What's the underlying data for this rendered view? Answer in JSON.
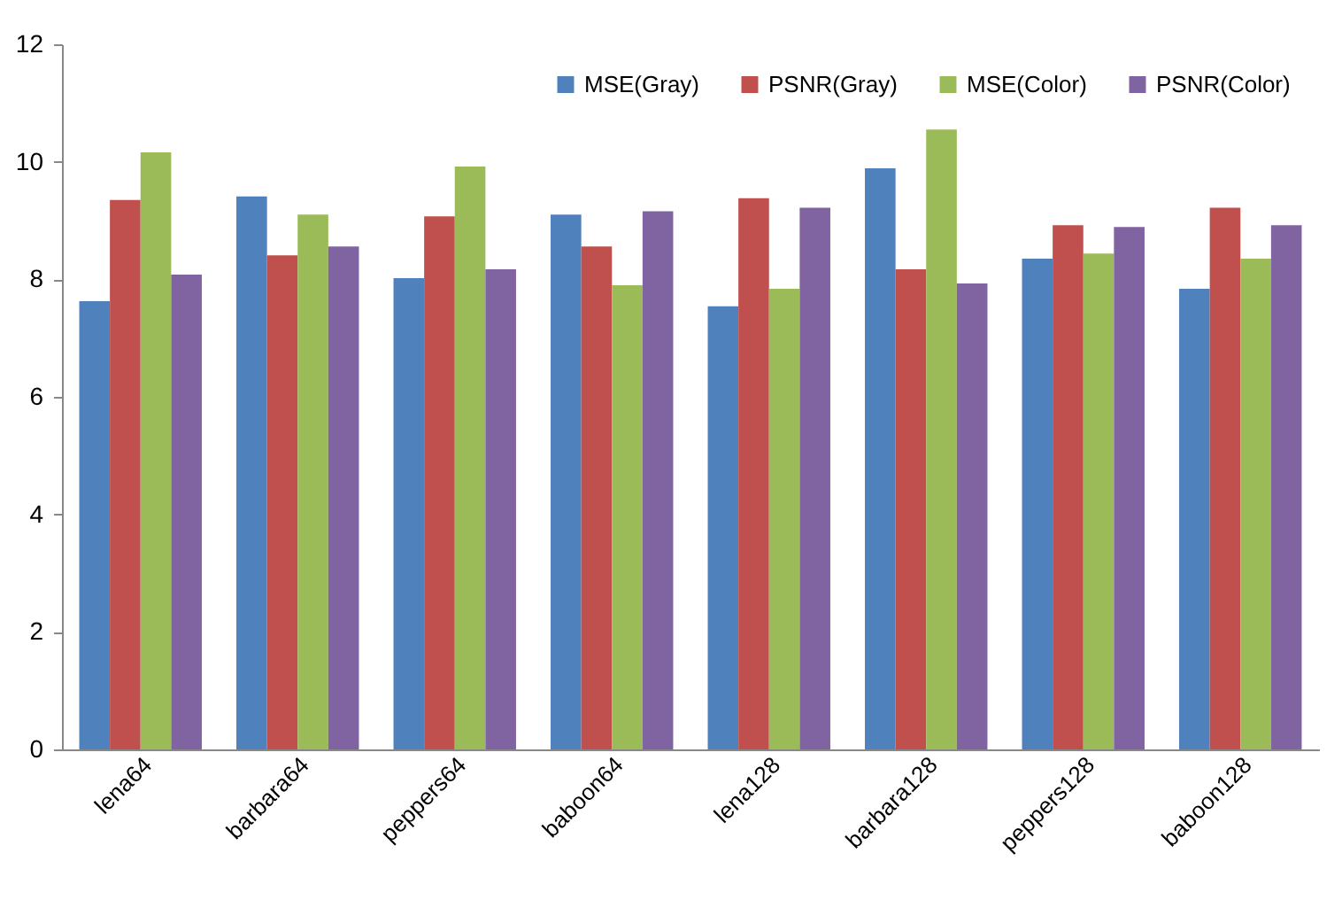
{
  "chart_data": {
    "type": "bar",
    "categories": [
      "lena64",
      "barbara64",
      "peppers64",
      "baboon64",
      "lena128",
      "barbara128",
      "peppers128",
      "baboon128"
    ],
    "series": [
      {
        "name": "MSE(Gray)",
        "color": "#4f81bd",
        "values": [
          7.63,
          9.41,
          8.02,
          9.1,
          7.54,
          9.89,
          8.35,
          7.84
        ]
      },
      {
        "name": "PSNR(Gray)",
        "color": "#c0504d",
        "values": [
          9.35,
          8.41,
          9.07,
          8.56,
          9.38,
          8.17,
          8.92,
          9.22
        ]
      },
      {
        "name": "MSE(Color)",
        "color": "#9bbb59",
        "values": [
          10.16,
          9.1,
          9.92,
          7.9,
          7.84,
          10.55,
          8.44,
          8.35
        ]
      },
      {
        "name": "PSNR(Color)",
        "color": "#8064a2",
        "values": [
          8.08,
          8.56,
          8.17,
          9.16,
          9.22,
          7.93,
          8.89,
          8.92
        ]
      }
    ],
    "ylim": [
      0,
      12
    ],
    "yticks": [
      0,
      2,
      4,
      6,
      8,
      10,
      12
    ],
    "legend": "top right",
    "grid": false
  }
}
